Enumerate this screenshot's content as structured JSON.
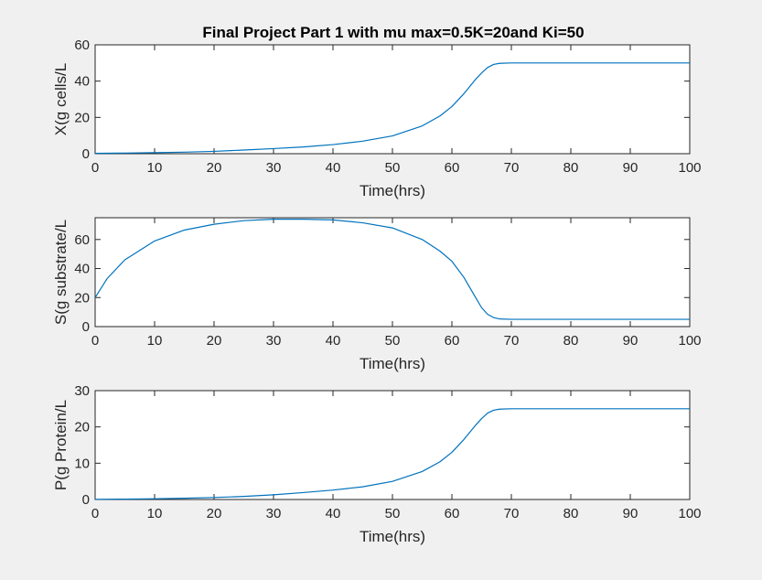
{
  "figure": {
    "background": "#f0f0f0",
    "axes_background": "#ffffff",
    "line_color": "#0072bd",
    "title": "Final Project Part 1 with mu max=0.5K=20and Ki=50"
  },
  "chart_data": [
    {
      "type": "line",
      "xlabel": "Time(hrs)",
      "ylabel": "X(g cells/L",
      "xlim": [
        0,
        100
      ],
      "ylim": [
        0,
        60
      ],
      "xticks": [
        "0",
        "10",
        "20",
        "30",
        "40",
        "50",
        "60",
        "70",
        "80",
        "90",
        "100"
      ],
      "yticks": [
        "0",
        "20",
        "40",
        "60"
      ],
      "grid": false,
      "series": [
        {
          "x": [
            0,
            5,
            10,
            15,
            20,
            25,
            30,
            35,
            40,
            45,
            50,
            55,
            58,
            60,
            62,
            64,
            65,
            66,
            67,
            68,
            70,
            75,
            80,
            85,
            90,
            95,
            100
          ],
          "y": [
            0.2,
            0.35,
            0.55,
            0.85,
            1.3,
            2.0,
            2.8,
            3.7,
            5.0,
            6.9,
            9.8,
            15.3,
            20.8,
            26,
            33,
            41,
            44.5,
            47.5,
            49.2,
            49.8,
            50,
            50,
            50,
            50,
            50,
            50,
            50
          ]
        }
      ]
    },
    {
      "type": "line",
      "xlabel": "Time(hrs)",
      "ylabel": "S(g substrate/L",
      "xlim": [
        0,
        100
      ],
      "ylim": [
        0,
        75
      ],
      "xticks": [
        "0",
        "10",
        "20",
        "30",
        "40",
        "50",
        "60",
        "70",
        "80",
        "90",
        "100"
      ],
      "yticks": [
        "0",
        "20",
        "40",
        "60"
      ],
      "grid": false,
      "series": [
        {
          "x": [
            0,
            2,
            5,
            10,
            15,
            20,
            25,
            30,
            35,
            40,
            45,
            50,
            55,
            58,
            60,
            62,
            64,
            65,
            66,
            67,
            68,
            70,
            75,
            80,
            85,
            90,
            95,
            100
          ],
          "y": [
            20,
            33,
            46,
            59,
            66.5,
            70.5,
            73,
            74,
            74,
            73.5,
            71.5,
            68,
            60,
            52,
            45,
            34,
            20,
            13,
            8.5,
            6.2,
            5.3,
            5,
            5,
            5,
            5,
            5,
            5,
            5
          ]
        }
      ]
    },
    {
      "type": "line",
      "xlabel": "Time(hrs)",
      "ylabel": "P(g Protein/L",
      "xlim": [
        0,
        100
      ],
      "ylim": [
        0,
        30
      ],
      "xticks": [
        "0",
        "10",
        "20",
        "30",
        "40",
        "50",
        "60",
        "70",
        "80",
        "90",
        "100"
      ],
      "yticks": [
        "0",
        "10",
        "20",
        "30"
      ],
      "grid": false,
      "series": [
        {
          "x": [
            0,
            5,
            10,
            15,
            20,
            25,
            30,
            35,
            40,
            45,
            50,
            55,
            58,
            60,
            62,
            64,
            65,
            66,
            67,
            68,
            70,
            75,
            80,
            85,
            90,
            95,
            100
          ],
          "y": [
            0.05,
            0.1,
            0.2,
            0.35,
            0.55,
            0.85,
            1.3,
            1.9,
            2.6,
            3.5,
            5.0,
            7.7,
            10.4,
            13,
            16.5,
            20.5,
            22.3,
            23.8,
            24.6,
            24.9,
            25,
            25,
            25,
            25,
            25,
            25,
            25
          ]
        }
      ]
    }
  ]
}
